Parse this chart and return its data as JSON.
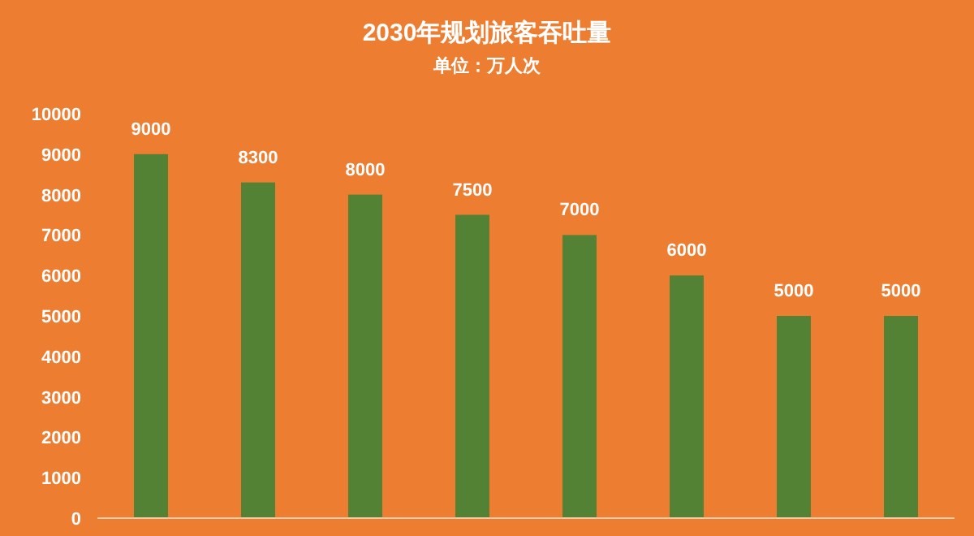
{
  "chart_data": {
    "type": "bar",
    "title": "2030年规划旅客吞吐量",
    "subtitle": "单位：万人次",
    "categories": [
      null,
      null,
      null,
      null,
      null,
      null,
      null,
      null
    ],
    "values": [
      9000,
      8300,
      8000,
      7500,
      7000,
      6000,
      5000,
      5000
    ],
    "color": "#548235",
    "ylim": [
      0,
      10000
    ],
    "yticks": [
      0,
      1000,
      2000,
      3000,
      4000,
      5000,
      6000,
      7000,
      8000,
      9000,
      10000
    ],
    "data_labels": true
  }
}
